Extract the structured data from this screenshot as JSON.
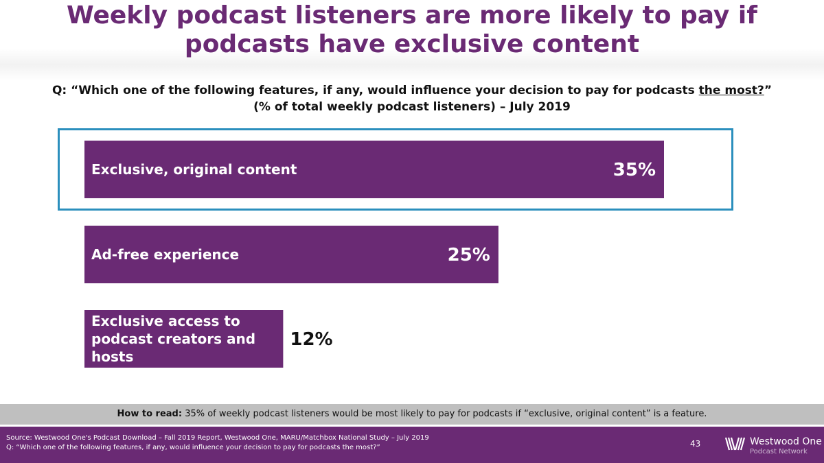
{
  "title": "Weekly podcast listeners are more likely to pay if podcasts have exclusive content",
  "question": {
    "prefix": "Q: “Which one of the following features, if any, would influence your decision to pay for podcasts ",
    "emphasis": "the most?",
    "suffix": "”",
    "subtitle": "(% of total weekly podcast listeners) – July 2019"
  },
  "chart_data": {
    "type": "bar",
    "orientation": "horizontal",
    "categories": [
      "Exclusive, original content",
      "Ad-free experience",
      "Exclusive access to podcast creators and hosts"
    ],
    "category_lines": [
      [
        "Exclusive, original content"
      ],
      [
        "Ad-free experience"
      ],
      [
        "Exclusive access to",
        "podcast creators and",
        "hosts"
      ]
    ],
    "values": [
      35,
      25,
      12
    ],
    "value_labels": [
      "35%",
      "25%",
      "12%"
    ],
    "highlighted_category": "Exclusive, original content",
    "grid": false,
    "bar_color": "#6a2a74"
  },
  "how_to_read": {
    "label": "How to read:",
    "text": "35% of weekly podcast listeners would be most likely to pay for podcasts if “exclusive, original content” is a feature."
  },
  "footer": {
    "source_line1": "Source: Westwood One's Podcast Download – Fall 2019 Report, Westwood One, MARU/Matchbox National Study – July 2019",
    "source_line2": "Q: “Which one of the following features, if any, would influence your decision to pay for podcasts the most?”",
    "page_number": "43",
    "logo_name": "Westwood One",
    "logo_sub": "Podcast Network"
  },
  "colors": {
    "brand_purple": "#6a2a74",
    "highlight_border": "#2b8fbd",
    "howto_band": "#bfbfbf"
  },
  "icons": {
    "logo_mark": "westwood-one-logo-icon"
  }
}
